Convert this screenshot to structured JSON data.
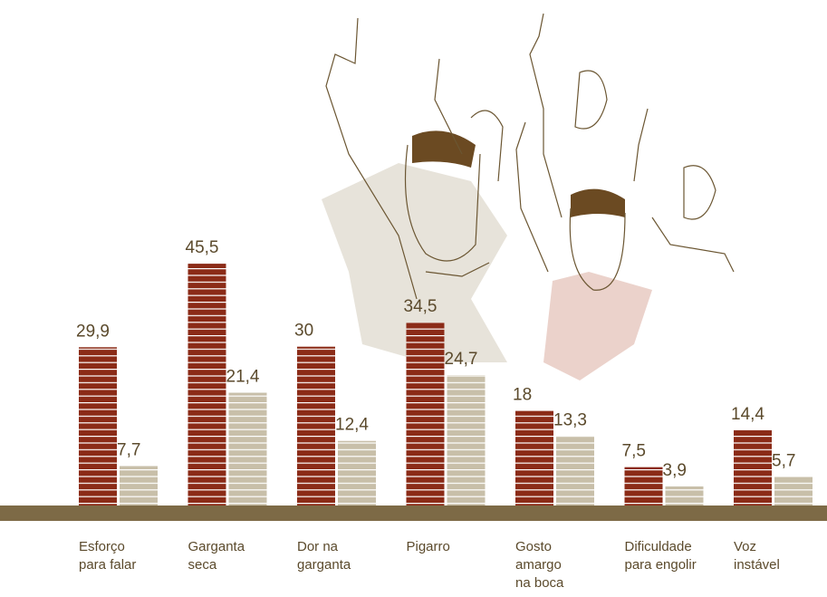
{
  "chart_data": {
    "type": "bar",
    "categories": [
      "Esforço\npara falar",
      "Garganta\nseca",
      "Dor na\ngarganta",
      "Pigarro",
      "Gosto\namargo\nna boca",
      "Dificuldade\npara engolir",
      "Voz\ninstável"
    ],
    "series": [
      {
        "color": "#8b2b17",
        "values": [
          29.9,
          45.5,
          30,
          34.5,
          18,
          7.5,
          14.4
        ],
        "value_labels": [
          "29,9",
          "45,5",
          "30",
          "34,5",
          "18",
          "7,5",
          "14,4"
        ]
      },
      {
        "color": "#c8bfa9",
        "values": [
          7.7,
          21.4,
          12.4,
          24.7,
          13.3,
          3.9,
          5.7
        ],
        "value_labels": [
          "7,7",
          "21,4",
          "12,4",
          "24,7",
          "13,3",
          "3,9",
          "5,7"
        ]
      }
    ],
    "ylim": [
      0,
      50
    ]
  }
}
